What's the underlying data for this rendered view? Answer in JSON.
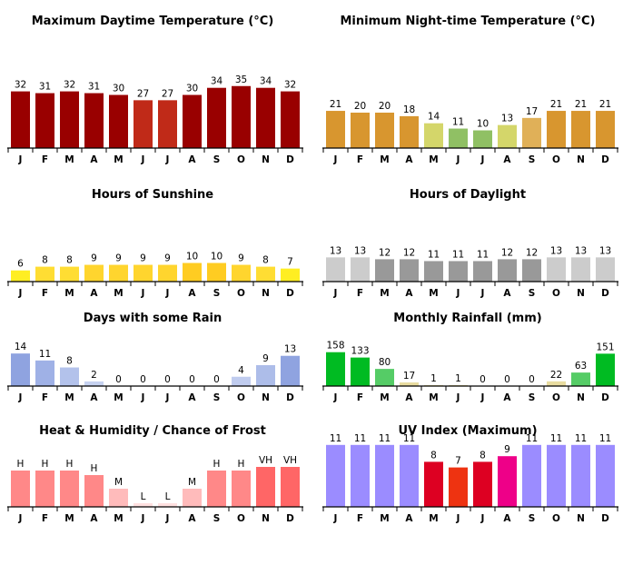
{
  "chart_data": [
    {
      "type": "bar",
      "title": "Maximum Daytime Temperature (°C)",
      "categories": [
        "J",
        "F",
        "M",
        "A",
        "M",
        "J",
        "J",
        "A",
        "S",
        "O",
        "N",
        "D"
      ],
      "values": [
        32,
        31,
        32,
        31,
        30,
        27,
        27,
        30,
        34,
        35,
        34,
        32
      ],
      "labels": [
        "32",
        "31",
        "32",
        "31",
        "30",
        "27",
        "27",
        "30",
        "34",
        "35",
        "34",
        "32"
      ],
      "colors": [
        "#990000",
        "#990000",
        "#990000",
        "#990000",
        "#990000",
        "#c02a18",
        "#c02a18",
        "#990000",
        "#990000",
        "#990000",
        "#990000",
        "#990000"
      ],
      "ylim": [
        0,
        38
      ]
    },
    {
      "type": "bar",
      "title": "Minimum Night-time Temperature (°C)",
      "categories": [
        "J",
        "F",
        "M",
        "A",
        "M",
        "J",
        "J",
        "A",
        "S",
        "O",
        "N",
        "D"
      ],
      "values": [
        21,
        20,
        20,
        18,
        14,
        11,
        10,
        13,
        17,
        21,
        21,
        21
      ],
      "labels": [
        "21",
        "20",
        "20",
        "18",
        "14",
        "11",
        "10",
        "13",
        "17",
        "21",
        "21",
        "21"
      ],
      "colors": [
        "#d8962f",
        "#d8962f",
        "#d8962f",
        "#d8962f",
        "#d4d66a",
        "#90c064",
        "#90c064",
        "#d4d66a",
        "#e0b058",
        "#d8962f",
        "#d8962f",
        "#d8962f"
      ],
      "ylim": [
        0,
        38
      ]
    },
    {
      "type": "bar",
      "title": "Hours of Sunshine",
      "categories": [
        "J",
        "F",
        "M",
        "A",
        "M",
        "J",
        "J",
        "A",
        "S",
        "O",
        "N",
        "D"
      ],
      "values": [
        6,
        8,
        8,
        9,
        9,
        9,
        9,
        10,
        10,
        9,
        8,
        7
      ],
      "labels": [
        "6",
        "8",
        "8",
        "9",
        "9",
        "9",
        "9",
        "10",
        "10",
        "9",
        "8",
        "7"
      ],
      "colors": [
        "#ffee22",
        "#ffdd33",
        "#ffdd33",
        "#ffd52e",
        "#ffd52e",
        "#ffd52e",
        "#ffd52e",
        "#ffcc22",
        "#ffcc22",
        "#ffd52e",
        "#ffdd33",
        "#ffee22"
      ],
      "ylim": [
        0,
        17
      ]
    },
    {
      "type": "bar",
      "title": "Hours of Daylight",
      "categories": [
        "J",
        "F",
        "M",
        "A",
        "M",
        "J",
        "J",
        "A",
        "S",
        "O",
        "N",
        "D"
      ],
      "values": [
        13,
        13,
        12,
        12,
        11,
        11,
        11,
        12,
        12,
        13,
        13,
        13
      ],
      "labels": [
        "13",
        "13",
        "12",
        "12",
        "11",
        "11",
        "11",
        "12",
        "12",
        "13",
        "13",
        "13"
      ],
      "colors": [
        "#cccccc",
        "#cccccc",
        "#999999",
        "#999999",
        "#999999",
        "#999999",
        "#999999",
        "#999999",
        "#999999",
        "#cccccc",
        "#cccccc",
        "#cccccc"
      ],
      "ylim": [
        0,
        15
      ]
    },
    {
      "type": "bar",
      "title": "Days with some Rain",
      "categories": [
        "J",
        "F",
        "M",
        "A",
        "M",
        "J",
        "J",
        "A",
        "S",
        "O",
        "N",
        "D"
      ],
      "values": [
        14,
        11,
        8,
        2,
        0,
        0,
        0,
        0,
        0,
        4,
        9,
        13
      ],
      "labels": [
        "14",
        "11",
        "8",
        "2",
        "0",
        "0",
        "0",
        "0",
        "0",
        "4",
        "9",
        "13"
      ],
      "colors": [
        "#8fa3e0",
        "#9fb1e6",
        "#b3c2eb",
        "#c6d2f0",
        "#d0d9f2",
        "#d0d9f2",
        "#d0d9f2",
        "#d0d9f2",
        "#d0d9f2",
        "#c0ccef",
        "#adbde9",
        "#8fa3e0"
      ],
      "ylim": [
        0,
        16
      ]
    },
    {
      "type": "bar",
      "title": "Monthly Rainfall (mm)",
      "categories": [
        "J",
        "F",
        "M",
        "A",
        "M",
        "J",
        "J",
        "A",
        "S",
        "O",
        "N",
        "D"
      ],
      "values": [
        158,
        133,
        80,
        17,
        1,
        1,
        0,
        0,
        0,
        22,
        63,
        151
      ],
      "labels": [
        "158",
        "133",
        "80",
        "17",
        "1",
        "1",
        "0",
        "0",
        "0",
        "22",
        "63",
        "151"
      ],
      "colors": [
        "#00bb22",
        "#00bb22",
        "#55cc66",
        "#e8dca0",
        "#e8dca0",
        "#e8dca0",
        "#e8dca0",
        "#e8dca0",
        "#e8dca0",
        "#e8dca0",
        "#55cc66",
        "#00bb22"
      ],
      "ylim": [
        0,
        175
      ]
    },
    {
      "type": "bar",
      "title": "Heat & Humidity / Chance of Frost",
      "categories": [
        "J",
        "F",
        "M",
        "A",
        "M",
        "J",
        "J",
        "A",
        "S",
        "O",
        "N",
        "D"
      ],
      "values": [
        4,
        4,
        4,
        3.5,
        2,
        0.4,
        0.4,
        2,
        4,
        4,
        4.4,
        4.4
      ],
      "labels": [
        "H",
        "H",
        "H",
        "H",
        "M",
        "L",
        "L",
        "M",
        "H",
        "H",
        "VH",
        "VH"
      ],
      "colors": [
        "#ff8888",
        "#ff8888",
        "#ff8888",
        "#ff8888",
        "#ffbbbb",
        "#ffe0e0",
        "#ffe0e0",
        "#ffbbbb",
        "#ff8888",
        "#ff8888",
        "#ff6666",
        "#ff6666"
      ],
      "ylim": [
        0,
        5
      ]
    },
    {
      "type": "bar",
      "title": "UV Index (Maximum)",
      "categories": [
        "J",
        "F",
        "M",
        "A",
        "M",
        "J",
        "J",
        "A",
        "S",
        "O",
        "N",
        "D"
      ],
      "values": [
        11,
        11,
        11,
        11,
        8,
        7,
        8,
        9,
        11,
        11,
        11,
        11
      ],
      "labels": [
        "11",
        "11",
        "11",
        "11",
        "8",
        "7",
        "8",
        "9",
        "11",
        "11",
        "11",
        "11"
      ],
      "colors": [
        "#9b8cff",
        "#9b8cff",
        "#9b8cff",
        "#9b8cff",
        "#dd0022",
        "#ee3311",
        "#dd0022",
        "#ee0088",
        "#9b8cff",
        "#9b8cff",
        "#9b8cff",
        "#9b8cff"
      ],
      "ylim": [
        0,
        13
      ]
    }
  ]
}
